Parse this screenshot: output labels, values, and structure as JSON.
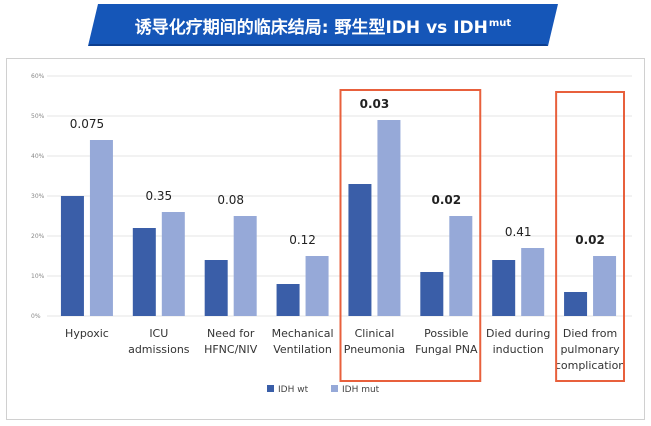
{
  "header": {
    "title_main": "诱导化疗期间的临床结局: 野生型IDH vs IDH",
    "title_sup": "mut"
  },
  "colors": {
    "banner": "#1556b8",
    "banner_dark": "#0d3e8f",
    "idh_wt": "#3a5ea8",
    "idh_mut": "#96a9d8",
    "highlight_box": "#e8603c",
    "grid": "#e6e6e6"
  },
  "chart_data": {
    "type": "bar",
    "title": "",
    "xlabel": "",
    "ylabel": "",
    "ylim": [
      0,
      60
    ],
    "yticks": [
      0,
      10,
      20,
      30,
      40,
      50,
      60
    ],
    "ytick_labels": [
      "0%",
      "10%",
      "20%",
      "30%",
      "40%",
      "50%",
      "60%"
    ],
    "grid": true,
    "legend_position": "bottom-center",
    "categories": [
      [
        "Hypoxic"
      ],
      [
        "ICU",
        "admissions"
      ],
      [
        "Need for",
        "HFNC/NIV"
      ],
      [
        "Mechanical",
        "Ventilation"
      ],
      [
        "Clinical",
        "Pneumonia"
      ],
      [
        "Possible",
        "Fungal PNA"
      ],
      [
        "Died during",
        "induction"
      ],
      [
        "Died from",
        "pulmonary",
        "complication"
      ]
    ],
    "series": [
      {
        "name": "IDH wt",
        "values": [
          30,
          22,
          14,
          8,
          33,
          11,
          14,
          6
        ]
      },
      {
        "name": "IDH mut",
        "values": [
          44,
          26,
          25,
          15,
          49,
          25,
          17,
          15
        ]
      }
    ],
    "p_values": [
      "0.075",
      "0.35",
      "0.08",
      "0.12",
      "0.03",
      "0.02",
      "0.41",
      "0.02"
    ],
    "p_bold": [
      false,
      false,
      false,
      false,
      true,
      true,
      false,
      true
    ],
    "highlighted_groups": [
      [
        4,
        5
      ],
      [
        7
      ]
    ]
  }
}
